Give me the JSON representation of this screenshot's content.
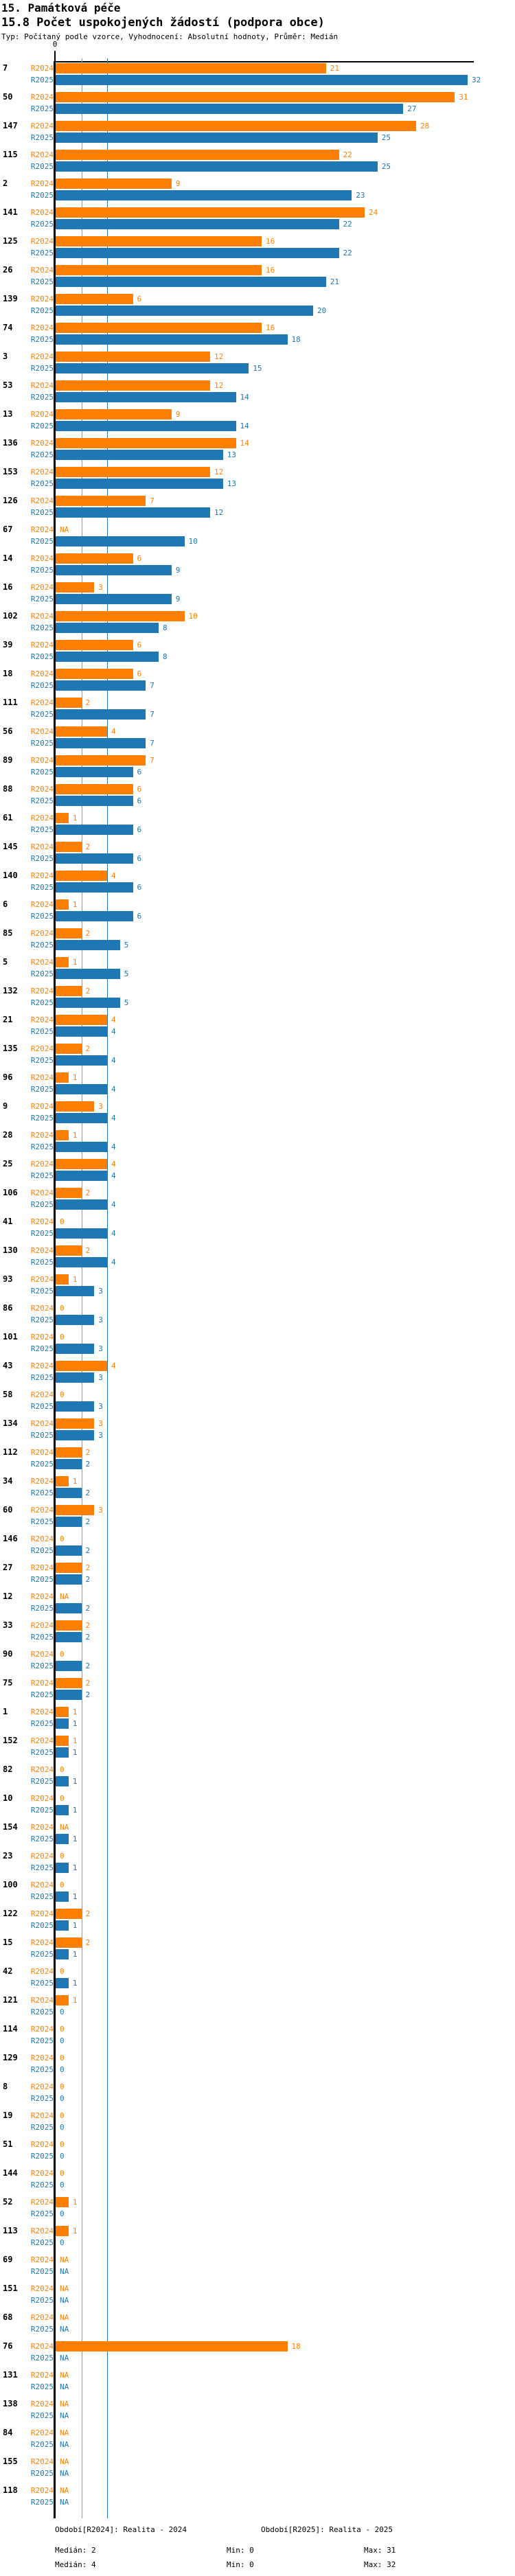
{
  "header": {
    "title": "15. Památková péče",
    "subtitle": "15.8 Počet uspokojených žádostí (podpora obce)",
    "meta": "Typ: Počítaný podle vzorce, Vyhodnocení: Absolutní hodnoty, Průměr: Medián"
  },
  "colors": {
    "r2024": "#ff8000",
    "r2025": "#1f77b4",
    "axis": "#000000"
  },
  "na_label": "NA",
  "chart_data": {
    "type": "bar",
    "orientation": "horizontal",
    "x_axis": {
      "origin_label": "0",
      "min": 0,
      "max": 32,
      "grid": "median-lines-only"
    },
    "series_names": [
      "R2024",
      "R2025"
    ],
    "median_lines": {
      "R2024": 2,
      "R2025": 4
    },
    "rows": [
      [
        "7",
        21,
        32
      ],
      [
        "50",
        31,
        27
      ],
      [
        "147",
        28,
        25
      ],
      [
        "115",
        22,
        25
      ],
      [
        "2",
        9,
        23
      ],
      [
        "141",
        24,
        22
      ],
      [
        "125",
        16,
        22
      ],
      [
        "26",
        16,
        21
      ],
      [
        "139",
        6,
        20
      ],
      [
        "74",
        16,
        18
      ],
      [
        "3",
        12,
        15
      ],
      [
        "53",
        12,
        14
      ],
      [
        "13",
        9,
        14
      ],
      [
        "136",
        14,
        13
      ],
      [
        "153",
        12,
        13
      ],
      [
        "126",
        7,
        12
      ],
      [
        "67",
        "NA",
        10
      ],
      [
        "14",
        6,
        9
      ],
      [
        "16",
        3,
        9
      ],
      [
        "102",
        10,
        8
      ],
      [
        "39",
        6,
        8
      ],
      [
        "18",
        6,
        7
      ],
      [
        "111",
        2,
        7
      ],
      [
        "56",
        4,
        7
      ],
      [
        "89",
        7,
        6
      ],
      [
        "88",
        6,
        6
      ],
      [
        "61",
        1,
        6
      ],
      [
        "145",
        2,
        6
      ],
      [
        "140",
        4,
        6
      ],
      [
        "6",
        1,
        6
      ],
      [
        "85",
        2,
        5
      ],
      [
        "5",
        1,
        5
      ],
      [
        "132",
        2,
        5
      ],
      [
        "21",
        4,
        4
      ],
      [
        "135",
        2,
        4
      ],
      [
        "96",
        1,
        4
      ],
      [
        "9",
        3,
        4
      ],
      [
        "28",
        1,
        4
      ],
      [
        "25",
        4,
        4
      ],
      [
        "106",
        2,
        4
      ],
      [
        "41",
        0,
        4
      ],
      [
        "130",
        2,
        4
      ],
      [
        "93",
        1,
        3
      ],
      [
        "86",
        0,
        3
      ],
      [
        "101",
        0,
        3
      ],
      [
        "43",
        4,
        3
      ],
      [
        "58",
        0,
        3
      ],
      [
        "134",
        3,
        3
      ],
      [
        "112",
        2,
        2
      ],
      [
        "34",
        1,
        2
      ],
      [
        "60",
        3,
        2
      ],
      [
        "146",
        0,
        2
      ],
      [
        "27",
        2,
        2
      ],
      [
        "12",
        "NA",
        2
      ],
      [
        "33",
        2,
        2
      ],
      [
        "90",
        0,
        2
      ],
      [
        "75",
        2,
        2
      ],
      [
        "1",
        1,
        1
      ],
      [
        "152",
        1,
        1
      ],
      [
        "82",
        0,
        1
      ],
      [
        "10",
        0,
        1
      ],
      [
        "154",
        "NA",
        1
      ],
      [
        "23",
        0,
        1
      ],
      [
        "100",
        0,
        1
      ],
      [
        "122",
        2,
        1
      ],
      [
        "15",
        2,
        1
      ],
      [
        "42",
        0,
        1
      ],
      [
        "121",
        1,
        0
      ],
      [
        "114",
        0,
        0
      ],
      [
        "129",
        0,
        0
      ],
      [
        "8",
        0,
        0
      ],
      [
        "19",
        0,
        0
      ],
      [
        "51",
        0,
        0
      ],
      [
        "144",
        0,
        0
      ],
      [
        "52",
        1,
        0
      ],
      [
        "113",
        1,
        0
      ],
      [
        "69",
        "NA",
        "NA"
      ],
      [
        "151",
        "NA",
        "NA"
      ],
      [
        "68",
        "NA",
        "NA"
      ],
      [
        "76",
        18,
        "NA"
      ],
      [
        "131",
        "NA",
        "NA"
      ],
      [
        "138",
        "NA",
        "NA"
      ],
      [
        "84",
        "NA",
        "NA"
      ],
      [
        "155",
        "NA",
        "NA"
      ],
      [
        "118",
        "NA",
        "NA"
      ]
    ]
  },
  "legend": {
    "r2024": {
      "period": "Období[R2024]: Realita - 2024",
      "median": "Medián: 2",
      "min": "Min: 0",
      "max": "Max: 31"
    },
    "r2025": {
      "period": "Období[R2025]: Realita - 2025",
      "median": "Medián: 4",
      "min": "Min: 0",
      "max": "Max: 32"
    }
  }
}
